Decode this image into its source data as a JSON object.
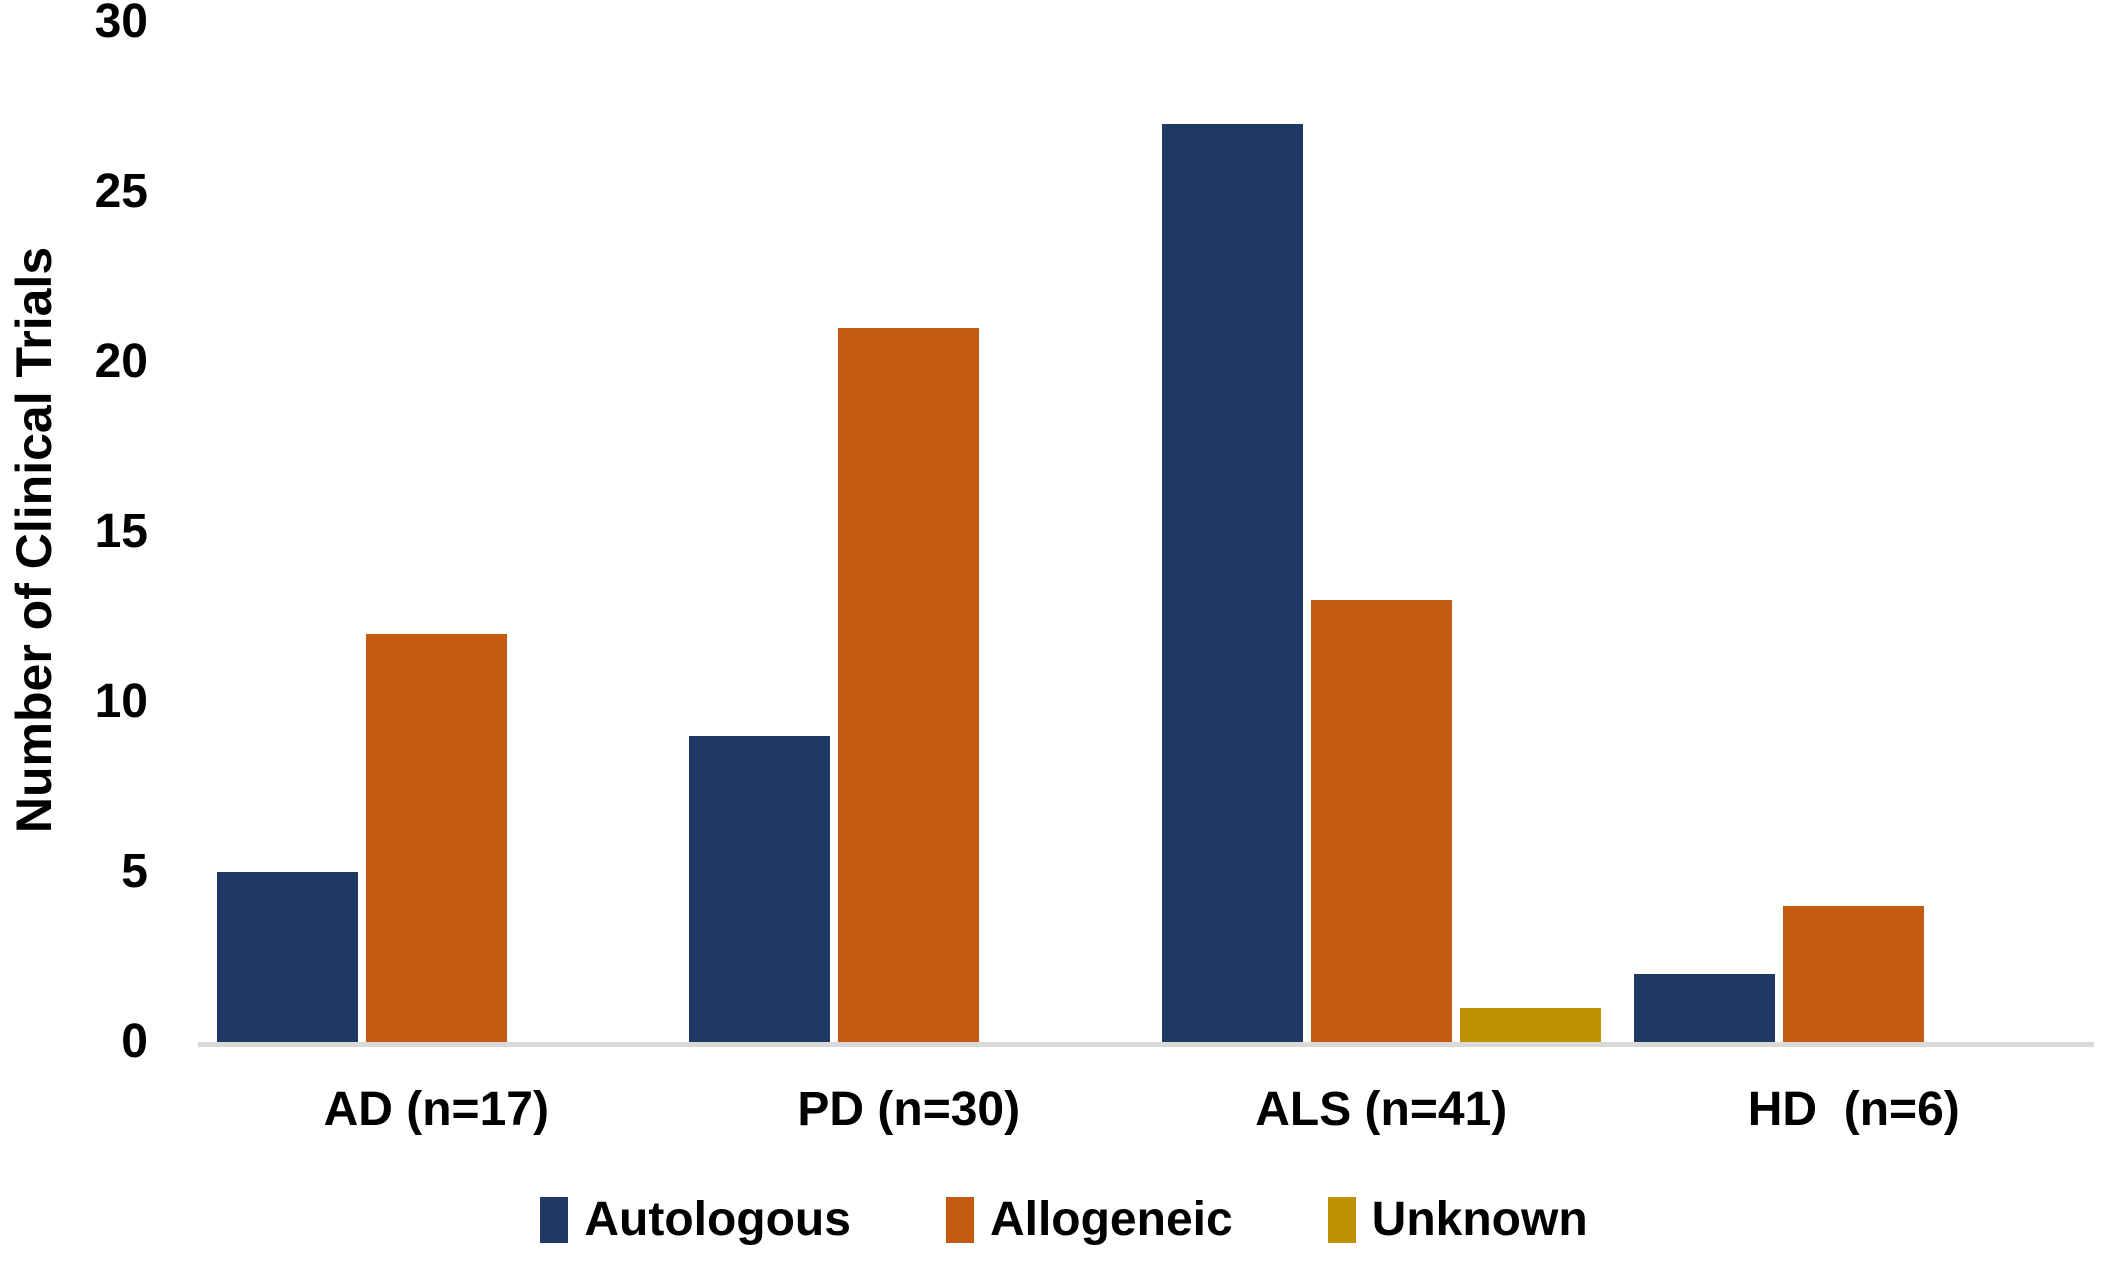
{
  "chart_data": {
    "type": "bar",
    "title": "",
    "xlabel": "",
    "ylabel": "Number of Clinical Trials",
    "ylim": [
      0,
      30
    ],
    "yticks": [
      0,
      5,
      10,
      15,
      20,
      25,
      30
    ],
    "grid": false,
    "legend_position": "bottom",
    "background_color": "#ffffff",
    "axis_line_color": "#D9D9D9",
    "text_color": "#000000",
    "categories": [
      "AD (n=17)",
      "PD (n=30)",
      "ALS (n=41)",
      "HD  (n=6)"
    ],
    "series": [
      {
        "name": "Autologous",
        "color": "#203864",
        "values": [
          5,
          9,
          27,
          2
        ]
      },
      {
        "name": "Allogeneic",
        "color": "#C55A11",
        "values": [
          12,
          21,
          13,
          4
        ]
      },
      {
        "name": "Unknown",
        "color": "#BF9000",
        "values": [
          0,
          0,
          1,
          0
        ]
      }
    ]
  }
}
